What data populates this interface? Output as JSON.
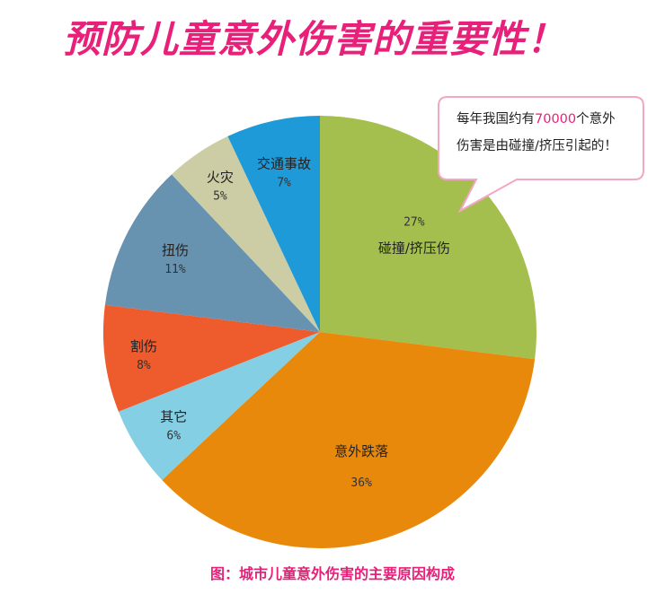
{
  "headline": "预防儿童意外伤害的重要性！",
  "callout": {
    "line1_pre": "每年我国约有",
    "line1_num": "70000",
    "line1_post": "个意外",
    "line2": "伤害是由碰撞/挤压引起的！"
  },
  "caption": "图：城市儿童意外伤害的主要原因构成",
  "colors": {
    "accent": "#e8207a",
    "bubble_border": "#f2a7c4"
  },
  "chart_data": {
    "type": "pie",
    "title": "",
    "start": "12 o'clock, clockwise",
    "slices": [
      {
        "label": "碰撞/挤压伤",
        "value": 27,
        "pct": "27%",
        "color": "#a5bf4f"
      },
      {
        "label": "意外跌落",
        "value": 36,
        "pct": "36%",
        "color": "#e8890c"
      },
      {
        "label": "其它",
        "value": 6,
        "pct": "6%",
        "color": "#85cfe4"
      },
      {
        "label": "割伤",
        "value": 8,
        "pct": "8%",
        "color": "#ee5b2c"
      },
      {
        "label": "扭伤",
        "value": 11,
        "pct": "11%",
        "color": "#6793b0"
      },
      {
        "label": "火灾",
        "value": 5,
        "pct": "5%",
        "color": "#cccda5"
      },
      {
        "label": "交通事故",
        "value": 7,
        "pct": "7%",
        "color": "#1e9ad8"
      }
    ]
  }
}
